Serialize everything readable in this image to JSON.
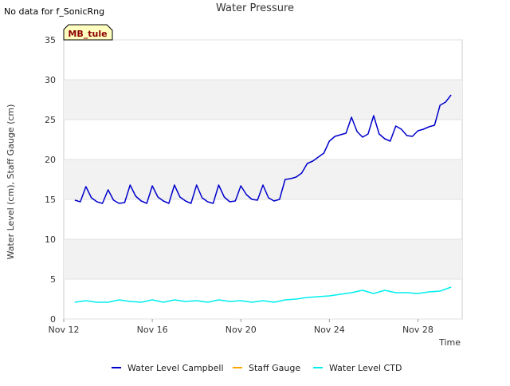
{
  "no_data_note": "No data for f_SonicRng",
  "station_badge": "MB_tule",
  "chart_data": {
    "type": "line",
    "title": "Water Pressure",
    "xlabel": "Time",
    "ylabel": "Water Level (cm), Staff Gauge (cm)",
    "xlim": [
      "Nov 12",
      "Nov 30"
    ],
    "ylim": [
      0,
      35
    ],
    "x_ticks": [
      "Nov 12",
      "Nov 16",
      "Nov 20",
      "Nov 24",
      "Nov 28"
    ],
    "y_ticks": [
      0,
      5,
      10,
      15,
      20,
      25,
      30,
      35
    ],
    "grid": true,
    "legend_position": "bottom",
    "series": [
      {
        "name": "Water Level Campbell",
        "color": "#0000cc",
        "x": [
          "Nov 12 12:00",
          "Nov 12 18:00",
          "Nov 13 00:00",
          "Nov 13 06:00",
          "Nov 13 12:00",
          "Nov 13 18:00",
          "Nov 14 00:00",
          "Nov 14 06:00",
          "Nov 14 12:00",
          "Nov 14 18:00",
          "Nov 15 00:00",
          "Nov 15 06:00",
          "Nov 15 12:00",
          "Nov 15 18:00",
          "Nov 16 00:00",
          "Nov 16 06:00",
          "Nov 16 12:00",
          "Nov 16 18:00",
          "Nov 17 00:00",
          "Nov 17 06:00",
          "Nov 17 12:00",
          "Nov 17 18:00",
          "Nov 18 00:00",
          "Nov 18 06:00",
          "Nov 18 12:00",
          "Nov 18 18:00",
          "Nov 19 00:00",
          "Nov 19 06:00",
          "Nov 19 12:00",
          "Nov 19 18:00",
          "Nov 20 00:00",
          "Nov 20 06:00",
          "Nov 20 12:00",
          "Nov 20 18:00",
          "Nov 21 00:00",
          "Nov 21 06:00",
          "Nov 21 12:00",
          "Nov 21 18:00",
          "Nov 22 00:00",
          "Nov 22 06:00",
          "Nov 22 12:00",
          "Nov 22 18:00",
          "Nov 23 00:00",
          "Nov 23 06:00",
          "Nov 23 12:00",
          "Nov 23 18:00",
          "Nov 24 00:00",
          "Nov 24 06:00",
          "Nov 24 12:00",
          "Nov 24 18:00",
          "Nov 25 00:00",
          "Nov 25 06:00",
          "Nov 25 12:00",
          "Nov 25 18:00",
          "Nov 26 00:00",
          "Nov 26 06:00",
          "Nov 26 12:00",
          "Nov 26 18:00",
          "Nov 27 00:00",
          "Nov 27 06:00",
          "Nov 27 12:00",
          "Nov 27 18:00",
          "Nov 28 00:00",
          "Nov 28 06:00",
          "Nov 28 12:00",
          "Nov 28 18:00",
          "Nov 29 00:00",
          "Nov 29 06:00",
          "Nov 29 12:00"
        ],
        "y": [
          14.9,
          14.7,
          16.6,
          15.2,
          14.7,
          14.5,
          16.2,
          14.9,
          14.5,
          14.6,
          16.8,
          15.4,
          14.8,
          14.5,
          16.7,
          15.3,
          14.8,
          14.5,
          16.8,
          15.3,
          14.8,
          14.5,
          16.8,
          15.2,
          14.7,
          14.5,
          16.8,
          15.3,
          14.7,
          14.8,
          16.7,
          15.6,
          15.0,
          14.9,
          16.8,
          15.2,
          14.8,
          15.0,
          17.5,
          17.6,
          17.8,
          18.3,
          19.5,
          19.8,
          20.3,
          20.8,
          22.3,
          22.9,
          23.1,
          23.3,
          25.3,
          23.5,
          22.8,
          23.2,
          25.5,
          23.2,
          22.6,
          22.3,
          24.2,
          23.8,
          23.0,
          22.9,
          23.6,
          23.8,
          24.1,
          24.3,
          26.8,
          27.2,
          28.1
        ]
      },
      {
        "name": "Staff Gauge",
        "color": "#ffa500",
        "x": [],
        "y": []
      },
      {
        "name": "Water Level CTD",
        "color": "#00eeee",
        "x": [
          "Nov 12 12:00",
          "Nov 13 00:00",
          "Nov 13 12:00",
          "Nov 14 00:00",
          "Nov 14 12:00",
          "Nov 15 00:00",
          "Nov 15 12:00",
          "Nov 16 00:00",
          "Nov 16 12:00",
          "Nov 17 00:00",
          "Nov 17 12:00",
          "Nov 18 00:00",
          "Nov 18 12:00",
          "Nov 19 00:00",
          "Nov 19 12:00",
          "Nov 20 00:00",
          "Nov 20 12:00",
          "Nov 21 00:00",
          "Nov 21 12:00",
          "Nov 22 00:00",
          "Nov 22 12:00",
          "Nov 23 00:00",
          "Nov 23 12:00",
          "Nov 24 00:00",
          "Nov 24 12:00",
          "Nov 25 00:00",
          "Nov 25 12:00",
          "Nov 26 00:00",
          "Nov 26 12:00",
          "Nov 27 00:00",
          "Nov 27 12:00",
          "Nov 28 00:00",
          "Nov 28 12:00",
          "Nov 29 00:00",
          "Nov 29 12:00"
        ],
        "y": [
          2.1,
          2.3,
          2.1,
          2.1,
          2.4,
          2.2,
          2.1,
          2.4,
          2.1,
          2.4,
          2.2,
          2.3,
          2.1,
          2.4,
          2.2,
          2.3,
          2.1,
          2.3,
          2.1,
          2.4,
          2.5,
          2.7,
          2.8,
          2.9,
          3.1,
          3.3,
          3.6,
          3.2,
          3.6,
          3.3,
          3.3,
          3.2,
          3.4,
          3.5,
          4.0
        ]
      }
    ]
  }
}
